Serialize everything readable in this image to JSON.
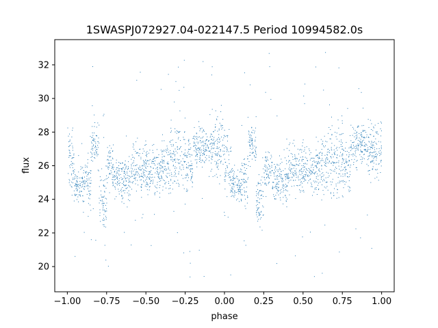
{
  "chart_data": {
    "type": "scatter",
    "title": "1SWASPJ072927.04-022147.5 Period 10994582.0s",
    "xlabel": "phase",
    "ylabel": "flux",
    "xlim": [
      -1.08,
      1.08
    ],
    "ylim": [
      18.5,
      33.5
    ],
    "xticks": [
      -1.0,
      -0.75,
      -0.5,
      -0.25,
      0.0,
      0.25,
      0.5,
      0.75,
      1.0
    ],
    "xtick_labels": [
      "−1.00",
      "−0.75",
      "−0.50",
      "−0.25",
      "0.00",
      "0.25",
      "0.50",
      "0.75",
      "1.00"
    ],
    "yticks": [
      20,
      22,
      24,
      26,
      28,
      30,
      32
    ],
    "ytick_labels": [
      "20",
      "22",
      "24",
      "26",
      "28",
      "30",
      "32"
    ],
    "grid": false,
    "legend": "none",
    "marker_color": "#1f77b4",
    "phase_folded": true,
    "series": [
      {
        "phase_segments": [
          {
            "x_start": -1.0,
            "x_end": -0.96,
            "mean": 26.2,
            "spread": 0.9
          },
          {
            "x_start": -0.96,
            "x_end": -0.9,
            "mean": 24.9,
            "spread": 0.5
          },
          {
            "x_start": -0.9,
            "x_end": -0.85,
            "mean": 25.1,
            "spread": 0.8
          },
          {
            "x_start": -0.85,
            "x_end": -0.8,
            "mean": 27.3,
            "spread": 0.6
          },
          {
            "x_start": -0.8,
            "x_end": -0.75,
            "mean": 24.0,
            "spread": 0.8
          },
          {
            "x_start": -0.75,
            "x_end": -0.7,
            "mean": 25.8,
            "spread": 0.6
          },
          {
            "x_start": -0.7,
            "x_end": -0.6,
            "mean": 25.2,
            "spread": 0.7
          },
          {
            "x_start": -0.6,
            "x_end": -0.5,
            "mean": 25.9,
            "spread": 0.7
          },
          {
            "x_start": -0.5,
            "x_end": -0.4,
            "mean": 25.7,
            "spread": 0.7
          },
          {
            "x_start": -0.4,
            "x_end": -0.35,
            "mean": 26.0,
            "spread": 0.8
          },
          {
            "x_start": -0.35,
            "x_end": -0.25,
            "mean": 26.6,
            "spread": 1.1
          },
          {
            "x_start": -0.25,
            "x_end": -0.2,
            "mean": 26.0,
            "spread": 0.9
          },
          {
            "x_start": -0.2,
            "x_end": -0.1,
            "mean": 27.3,
            "spread": 0.6
          },
          {
            "x_start": -0.1,
            "x_end": 0.0,
            "mean": 27.0,
            "spread": 0.9
          },
          {
            "x_start": 0.0,
            "x_end": 0.04,
            "mean": 26.2,
            "spread": 0.9
          },
          {
            "x_start": 0.04,
            "x_end": 0.1,
            "mean": 24.9,
            "spread": 0.5
          },
          {
            "x_start": 0.1,
            "x_end": 0.15,
            "mean": 25.1,
            "spread": 0.8
          },
          {
            "x_start": 0.15,
            "x_end": 0.2,
            "mean": 27.3,
            "spread": 0.6
          },
          {
            "x_start": 0.2,
            "x_end": 0.25,
            "mean": 24.0,
            "spread": 0.8
          },
          {
            "x_start": 0.25,
            "x_end": 0.3,
            "mean": 25.8,
            "spread": 0.6
          },
          {
            "x_start": 0.3,
            "x_end": 0.4,
            "mean": 25.2,
            "spread": 0.7
          },
          {
            "x_start": 0.4,
            "x_end": 0.5,
            "mean": 25.9,
            "spread": 0.7
          },
          {
            "x_start": 0.5,
            "x_end": 0.6,
            "mean": 25.7,
            "spread": 0.7
          },
          {
            "x_start": 0.6,
            "x_end": 0.65,
            "mean": 26.0,
            "spread": 0.8
          },
          {
            "x_start": 0.65,
            "x_end": 0.75,
            "mean": 26.6,
            "spread": 1.1
          },
          {
            "x_start": 0.75,
            "x_end": 0.8,
            "mean": 26.0,
            "spread": 0.9
          },
          {
            "x_start": 0.8,
            "x_end": 0.9,
            "mean": 27.3,
            "spread": 0.6
          },
          {
            "x_start": 0.9,
            "x_end": 1.0,
            "mean": 27.0,
            "spread": 0.9
          }
        ],
        "outlier_range": [
          19.2,
          32.8
        ]
      }
    ]
  }
}
